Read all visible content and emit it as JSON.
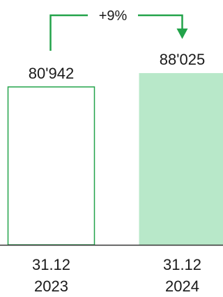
{
  "chart_data": {
    "type": "bar",
    "categories": [
      [
        "31.12",
        "2023"
      ],
      [
        "31.12",
        "2024"
      ]
    ],
    "values": [
      80942,
      88025
    ],
    "value_labels": [
      "80'942",
      "88'025"
    ],
    "change_label": "+9%",
    "ylim": [
      0,
      100000
    ],
    "grid": false,
    "bar_styles": [
      {
        "fill": "#ffffff",
        "stroke": "#22a34a"
      },
      {
        "fill": "#b8e8c9",
        "stroke": "none"
      }
    ],
    "colors": {
      "accent": "#22a34a",
      "baseline": "#333333",
      "text": "#1a1a1a"
    }
  }
}
